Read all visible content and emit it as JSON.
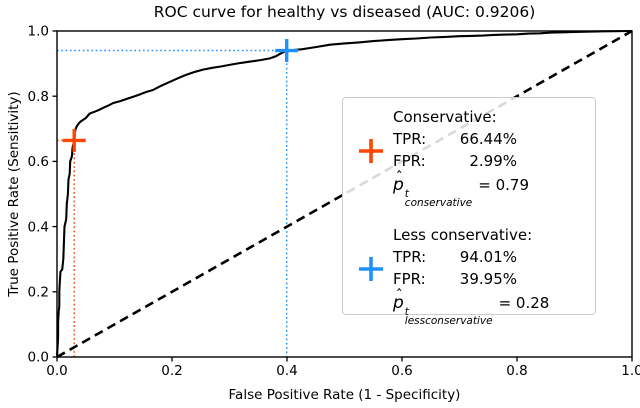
{
  "chart_data": {
    "type": "line",
    "title": "ROC curve for healthy vs diseased (AUC: 0.9206)",
    "xlabel": "False Positive Rate (1 - Specificity)",
    "ylabel": "True Positive Rate (Sensitivity)",
    "xlim": [
      0.0,
      1.0
    ],
    "ylim": [
      0.0,
      1.0
    ],
    "x_ticks": [
      "0.0",
      "0.2",
      "0.4",
      "0.6",
      "0.8",
      "1.0"
    ],
    "y_ticks": [
      "0.0",
      "0.2",
      "0.4",
      "0.6",
      "0.8",
      "1.0"
    ],
    "grid": false,
    "legend_position": "center right",
    "series": [
      {
        "name": "roc-curve",
        "color": "#000000",
        "style": "solid",
        "points": [
          [
            0.0,
            0.0
          ],
          [
            0.002,
            0.06
          ],
          [
            0.002,
            0.105
          ],
          [
            0.003,
            0.14
          ],
          [
            0.004,
            0.155
          ],
          [
            0.004,
            0.2
          ],
          [
            0.005,
            0.235
          ],
          [
            0.006,
            0.262
          ],
          [
            0.009,
            0.268
          ],
          [
            0.011,
            0.3
          ],
          [
            0.012,
            0.35
          ],
          [
            0.013,
            0.4
          ],
          [
            0.016,
            0.423
          ],
          [
            0.017,
            0.47
          ],
          [
            0.019,
            0.5
          ],
          [
            0.02,
            0.545
          ],
          [
            0.022,
            0.562
          ],
          [
            0.023,
            0.6
          ],
          [
            0.026,
            0.617
          ],
          [
            0.027,
            0.641
          ],
          [
            0.0299,
            0.6644
          ],
          [
            0.031,
            0.688
          ],
          [
            0.033,
            0.703
          ],
          [
            0.036,
            0.712
          ],
          [
            0.04,
            0.721
          ],
          [
            0.045,
            0.727
          ],
          [
            0.05,
            0.733
          ],
          [
            0.057,
            0.747
          ],
          [
            0.065,
            0.752
          ],
          [
            0.072,
            0.757
          ],
          [
            0.08,
            0.764
          ],
          [
            0.09,
            0.772
          ],
          [
            0.098,
            0.779
          ],
          [
            0.11,
            0.785
          ],
          [
            0.12,
            0.791
          ],
          [
            0.132,
            0.798
          ],
          [
            0.145,
            0.806
          ],
          [
            0.155,
            0.813
          ],
          [
            0.167,
            0.819
          ],
          [
            0.18,
            0.831
          ],
          [
            0.196,
            0.844
          ],
          [
            0.21,
            0.855
          ],
          [
            0.225,
            0.866
          ],
          [
            0.24,
            0.875
          ],
          [
            0.255,
            0.882
          ],
          [
            0.27,
            0.887
          ],
          [
            0.285,
            0.891
          ],
          [
            0.3,
            0.896
          ],
          [
            0.32,
            0.902
          ],
          [
            0.336,
            0.906
          ],
          [
            0.355,
            0.911
          ],
          [
            0.37,
            0.916
          ],
          [
            0.38,
            0.922
          ],
          [
            0.388,
            0.93
          ],
          [
            0.395,
            0.936
          ],
          [
            0.3995,
            0.9401
          ],
          [
            0.41,
            0.9415
          ],
          [
            0.425,
            0.944
          ],
          [
            0.44,
            0.948
          ],
          [
            0.455,
            0.952
          ],
          [
            0.475,
            0.958
          ],
          [
            0.5,
            0.962
          ],
          [
            0.525,
            0.965
          ],
          [
            0.55,
            0.969
          ],
          [
            0.575,
            0.972
          ],
          [
            0.6,
            0.975
          ],
          [
            0.625,
            0.977
          ],
          [
            0.65,
            0.98
          ],
          [
            0.675,
            0.982
          ],
          [
            0.7,
            0.984
          ],
          [
            0.72,
            0.985
          ],
          [
            0.74,
            0.986
          ],
          [
            0.76,
            0.988
          ],
          [
            0.78,
            0.989
          ],
          [
            0.8,
            0.99
          ],
          [
            0.82,
            0.992
          ],
          [
            0.84,
            0.993
          ],
          [
            0.86,
            0.995
          ],
          [
            0.88,
            0.996
          ],
          [
            0.9,
            0.997
          ],
          [
            0.92,
            0.998
          ],
          [
            0.95,
            0.999
          ],
          [
            1.0,
            1.0
          ]
        ]
      },
      {
        "name": "chance-line",
        "color": "#000000",
        "style": "dashed",
        "points": [
          [
            0.0,
            0.0
          ],
          [
            1.0,
            1.0
          ]
        ]
      }
    ],
    "markers": [
      {
        "name": "conservative",
        "color": "#ff4500",
        "fpr": 0.0299,
        "tpr": 0.6644,
        "guide": "dotted"
      },
      {
        "name": "less-conservative",
        "color": "#1e90ff",
        "fpr": 0.3995,
        "tpr": 0.9401,
        "guide": "dotted"
      }
    ]
  },
  "legend": {
    "conservative": {
      "label": "Conservative:",
      "tpr_label": "TPR:",
      "tpr_value": "66.44%",
      "fpr_label": "FPR:",
      "fpr_value": "2.99%",
      "marker_color": "#ff4500",
      "formula": {
        "p": "p",
        "hat": "ˆ",
        "sup": "t",
        "sub": "conservative",
        "value": "= 0.79"
      }
    },
    "less_conservative": {
      "label": "Less conservative:",
      "tpr_label": "TPR:",
      "tpr_value": "94.01%",
      "fpr_label": "FPR:",
      "fpr_value": "39.95%",
      "marker_color": "#1e90ff",
      "formula": {
        "p": "p",
        "hat": "ˆ",
        "sup": "t",
        "sub": "lessconservative",
        "value": "= 0.28"
      }
    }
  }
}
